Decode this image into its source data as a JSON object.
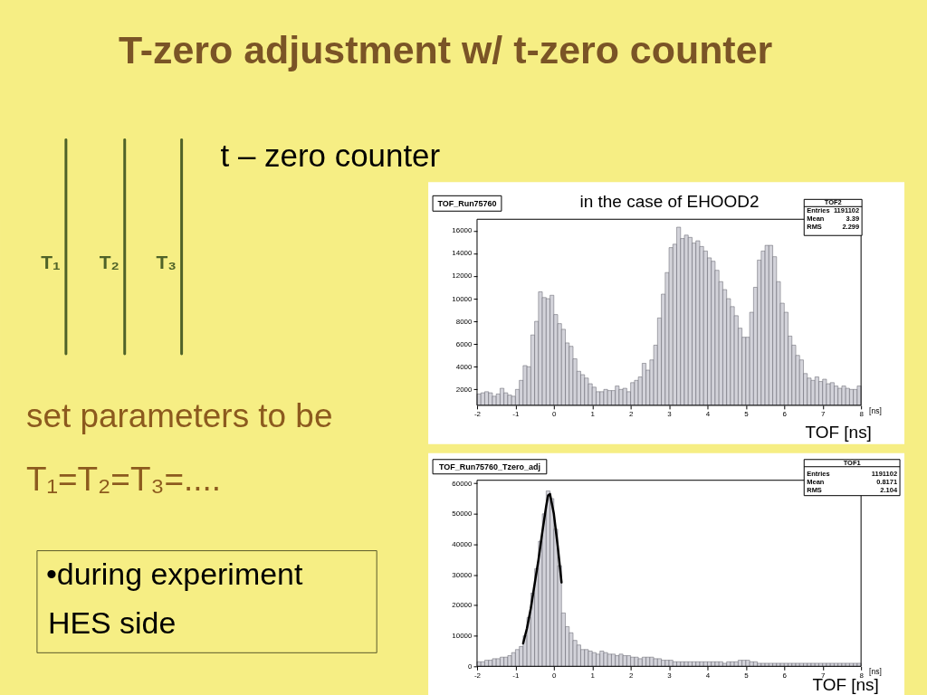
{
  "chart_data": [
    {
      "type": "other",
      "title": "T-zero adjustment w/ t-zero counter",
      "annotations": [
        "t – zero counter",
        "T₁",
        "T₂",
        "T₃",
        "set parameters to be",
        "T₁=T₂=T₃=....",
        "•during experiment",
        "HES side"
      ]
    },
    {
      "type": "histogram",
      "title": "TOF_Run75760",
      "subtitle": "in the case of EHOOD2",
      "xlabel": "TOF [ns]",
      "bins": [
        -2,
        -1.9,
        -1.8,
        -1.7,
        -1.6,
        -1.5,
        -1.4,
        -1.3,
        -1.2,
        -1.1,
        -1,
        -0.9,
        -0.8,
        -0.7,
        -0.6,
        -0.5,
        -0.4,
        -0.3,
        -0.2,
        -0.1,
        0,
        0.1,
        0.2,
        0.3,
        0.4,
        0.5,
        0.6,
        0.7,
        0.8,
        0.9,
        1,
        1.1,
        1.2,
        1.3,
        1.4,
        1.5,
        1.6,
        1.7,
        1.8,
        1.9,
        2,
        2.1,
        2.2,
        2.3,
        2.4,
        2.5,
        2.6,
        2.7,
        2.8,
        2.9,
        3,
        3.1,
        3.2,
        3.3,
        3.4,
        3.5,
        3.6,
        3.7,
        3.8,
        3.9,
        4,
        4.1,
        4.2,
        4.3,
        4.4,
        4.5,
        4.6,
        4.7,
        4.8,
        4.9,
        5,
        5.1,
        5.2,
        5.3,
        5.4,
        5.5,
        5.6,
        5.7,
        5.8,
        5.9,
        6,
        6.1,
        6.2,
        6.3,
        6.4,
        6.5,
        6.6,
        6.7,
        6.8,
        6.9,
        7,
        7.1,
        7.2,
        7.3,
        7.4,
        7.5,
        7.6,
        7.7,
        7.8,
        7.9,
        8
      ],
      "series": [
        {
          "color": "#d3d3da",
          "values": [
            1600,
            1700,
            1800,
            1700,
            1400,
            1600,
            2100,
            1700,
            1500,
            1400,
            2000,
            2800,
            4100,
            4000,
            6800,
            8000,
            10600,
            10100,
            10000,
            10300,
            8600,
            7800,
            7300,
            6100,
            5800,
            4700,
            3600,
            3300,
            3000,
            2500,
            2200,
            1800,
            1800,
            2000,
            1900,
            1900,
            2300,
            2000,
            2100,
            1800,
            2600,
            2800,
            3100,
            4300,
            3700,
            4600,
            5900,
            8300,
            10400,
            12300,
            14500,
            14800,
            16300,
            15300,
            15600,
            15400,
            14900,
            15100,
            14600,
            14200,
            13600,
            13300,
            12500,
            11500,
            10800,
            10000,
            9300,
            8500,
            7400,
            6600,
            6600,
            8800,
            11000,
            13400,
            14200,
            14700,
            14700,
            13700,
            11500,
            9600,
            8800,
            6700,
            5900,
            5000,
            4600,
            3400,
            3000,
            2800,
            3100,
            2700,
            2900,
            2500,
            2600,
            2300,
            2100,
            2300,
            2100,
            2000,
            2000,
            2300
          ]
        }
      ],
      "xlim": [
        -2,
        8
      ],
      "ylim": [
        600,
        17000
      ],
      "xticks": [
        -2,
        -1,
        0,
        1,
        2,
        3,
        4,
        5,
        6,
        7,
        8
      ],
      "yticks": [
        2000,
        4000,
        6000,
        8000,
        10000,
        12000,
        14000,
        16000
      ],
      "annotations": [
        "TOF2",
        "Entries",
        "1191102",
        "Mean",
        "3.39",
        "RMS",
        "2.299",
        "[ns]"
      ]
    },
    {
      "type": "histogram",
      "title": "TOF_Run75760_Tzero_adj",
      "xlabel": "TOF [ns]",
      "bins": [
        -2,
        -1.9,
        -1.8,
        -1.7,
        -1.6,
        -1.5,
        -1.4,
        -1.3,
        -1.2,
        -1.1,
        -1,
        -0.9,
        -0.8,
        -0.7,
        -0.6,
        -0.5,
        -0.4,
        -0.3,
        -0.2,
        -0.1,
        0,
        0.1,
        0.2,
        0.3,
        0.4,
        0.5,
        0.6,
        0.7,
        0.8,
        0.9,
        1,
        1.1,
        1.2,
        1.3,
        1.4,
        1.5,
        1.6,
        1.7,
        1.8,
        1.9,
        2,
        2.1,
        2.2,
        2.3,
        2.4,
        2.5,
        2.6,
        2.7,
        2.8,
        2.9,
        3,
        3.1,
        3.2,
        3.3,
        3.4,
        3.5,
        3.6,
        3.7,
        3.8,
        3.9,
        4,
        4.1,
        4.2,
        4.3,
        4.4,
        4.5,
        4.6,
        4.7,
        4.8,
        4.9,
        5,
        5.1,
        5.2,
        5.3,
        5.4,
        5.5,
        5.6,
        5.7,
        5.8,
        5.9,
        6,
        6.1,
        6.2,
        6.3,
        6.4,
        6.5,
        6.6,
        6.7,
        6.8,
        6.9,
        7,
        7.1,
        7.2,
        7.3,
        7.4,
        7.5,
        7.6,
        7.7,
        7.8,
        7.9,
        8
      ],
      "series": [
        {
          "color": "#d3d3da",
          "values": [
            1500,
            1500,
            2000,
            2000,
            2500,
            2500,
            3000,
            3000,
            3500,
            4500,
            5500,
            6500,
            10000,
            16000,
            24000,
            32000,
            41000,
            50000,
            57500,
            55000,
            45000,
            33000,
            17500,
            13000,
            11000,
            8500,
            7000,
            5500,
            5500,
            5000,
            4500,
            4000,
            5000,
            4500,
            4000,
            4000,
            3500,
            4000,
            3500,
            3500,
            3000,
            3000,
            2500,
            3000,
            3000,
            3000,
            2500,
            2500,
            2000,
            2000,
            2000,
            1500,
            1500,
            1500,
            1500,
            1500,
            1500,
            1500,
            1500,
            1500,
            1500,
            1500,
            1500,
            1500,
            1000,
            1500,
            1500,
            1500,
            2000,
            2000,
            2000,
            1500,
            1500,
            1000,
            1000,
            1000,
            1000,
            1000,
            1000,
            1000,
            1000,
            1000,
            1000,
            1000,
            1000,
            1000,
            1000,
            1000,
            1000,
            1000,
            1000,
            1000,
            1000,
            1000,
            1000,
            1000,
            1000,
            1000,
            1000,
            1000
          ]
        },
        {
          "type": "line",
          "color": "#000000",
          "x": [
            -0.8,
            -0.7,
            -0.6,
            -0.5,
            -0.4,
            -0.3,
            -0.2,
            -0.15,
            -0.1,
            0,
            0.1,
            0.2
          ],
          "values": [
            7500,
            12500,
            19000,
            27000,
            35000,
            44000,
            52500,
            56000,
            56500,
            50000,
            39500,
            27500
          ]
        }
      ],
      "xlim": [
        -2,
        8
      ],
      "ylim": [
        0,
        61000
      ],
      "xticks": [
        -2,
        -1,
        0,
        1,
        2,
        3,
        4,
        5,
        6,
        7,
        8
      ],
      "yticks": [
        0,
        10000,
        20000,
        30000,
        40000,
        50000,
        60000
      ],
      "annotations": [
        "TOF1",
        "Entries",
        "1191102",
        "Mean",
        "0.8171",
        "RMS",
        "2.104",
        "[ns]"
      ]
    }
  ]
}
